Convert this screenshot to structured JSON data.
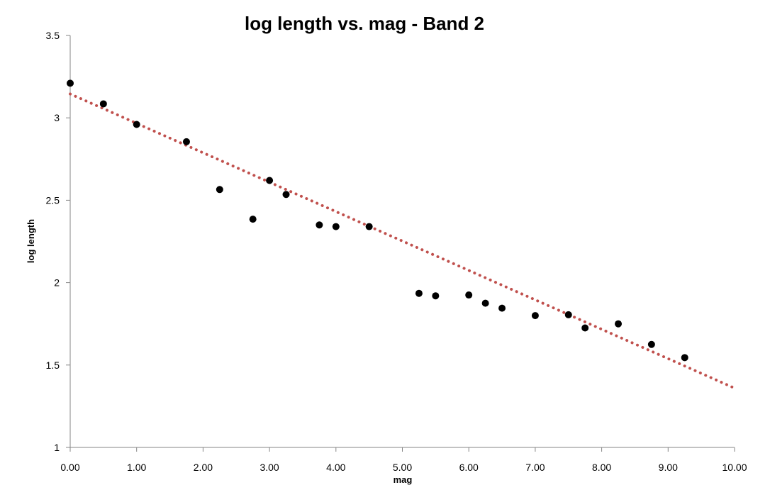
{
  "chart_data": {
    "type": "scatter",
    "title": "log length vs. mag - Band 2",
    "xlabel": "mag",
    "ylabel": "log length",
    "xlim": [
      0,
      10
    ],
    "ylim": [
      1,
      3.5
    ],
    "x_ticks": [
      "0.00",
      "1.00",
      "2.00",
      "3.00",
      "4.00",
      "5.00",
      "6.00",
      "7.00",
      "8.00",
      "9.00",
      "10.00"
    ],
    "y_ticks": [
      "1",
      "1.5",
      "2",
      "2.5",
      "3",
      "3.5"
    ],
    "grid": false,
    "legend": "none",
    "series": [
      {
        "x": [
          0.0,
          0.5,
          1.0,
          1.75,
          2.25,
          2.75,
          3.0,
          3.25,
          3.75,
          4.0,
          4.5,
          5.25,
          5.5,
          6.0,
          6.25,
          6.5,
          7.0,
          7.5,
          7.75,
          8.25,
          8.75,
          9.25
        ],
        "y": [
          3.21,
          3.085,
          2.96,
          2.855,
          2.565,
          2.385,
          2.62,
          2.535,
          2.35,
          2.34,
          2.34,
          1.935,
          1.92,
          1.925,
          1.875,
          1.845,
          1.8,
          1.805,
          1.725,
          1.75,
          1.625,
          1.545
        ],
        "color": "#000000"
      }
    ],
    "trendline": {
      "type": "linear",
      "style": "dotted",
      "color": "#c0504d",
      "x": [
        0,
        10
      ],
      "y": [
        3.145,
        1.36
      ]
    }
  }
}
